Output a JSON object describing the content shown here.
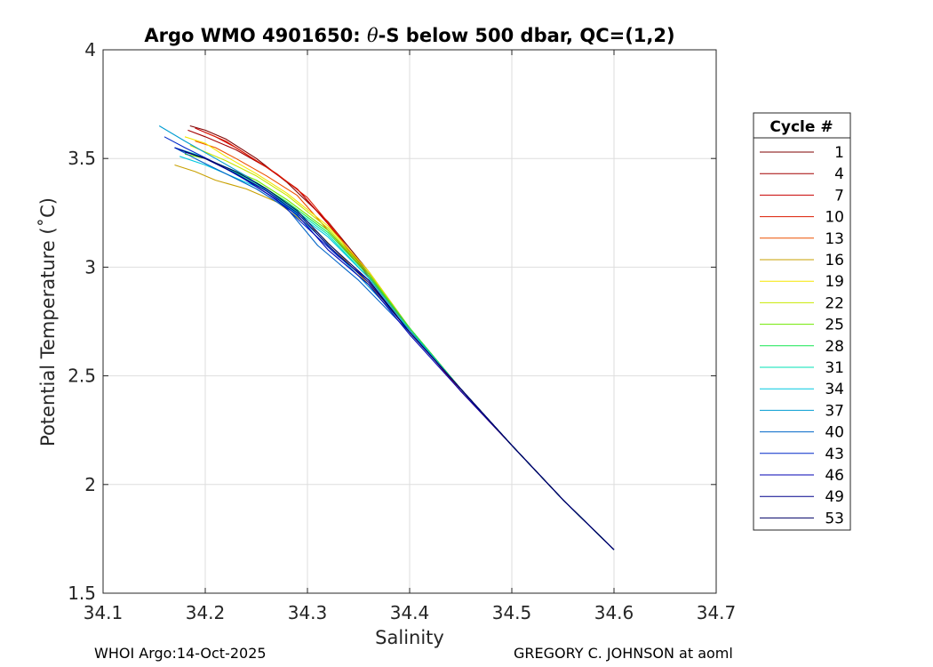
{
  "footer": {
    "left": "WHOI Argo:14-Oct-2025",
    "right": "GREGORY C. JOHNSON at aoml"
  },
  "chart_data": {
    "type": "line",
    "title_prefix": "Argo WMO 4901650: ",
    "title_theta": "θ",
    "title_suffix": "-S below 500 dbar,  QC=(1,2)",
    "xlabel": "Salinity",
    "ylabel": "Potential Temperature (˚C)",
    "xlim": [
      34.1,
      34.7
    ],
    "ylim": [
      1.5,
      4
    ],
    "xticks": [
      34.1,
      34.2,
      34.3,
      34.4,
      34.5,
      34.6,
      34.7
    ],
    "xtick_labels": [
      "34.1",
      "34.2",
      "34.3",
      "34.4",
      "34.5",
      "34.6",
      "34.7"
    ],
    "yticks": [
      1.5,
      2,
      2.5,
      3,
      3.5,
      4
    ],
    "ytick_labels": [
      "1.5",
      "2",
      "2.5",
      "3",
      "3.5",
      "4"
    ],
    "grid": true,
    "legend": {
      "title": "Cycle #",
      "placement": "right-outside",
      "entries": [
        {
          "label": "1",
          "color": "#7f0000"
        },
        {
          "label": "4",
          "color": "#a30000"
        },
        {
          "label": "7",
          "color": "#c80000"
        },
        {
          "label": "10",
          "color": "#dc1a00"
        },
        {
          "label": "13",
          "color": "#ee5000"
        },
        {
          "label": "16",
          "color": "#c8a000"
        },
        {
          "label": "19",
          "color": "#f5e600"
        },
        {
          "label": "22",
          "color": "#c8e800"
        },
        {
          "label": "25",
          "color": "#6ee800"
        },
        {
          "label": "28",
          "color": "#14e650"
        },
        {
          "label": "31",
          "color": "#00e0b4"
        },
        {
          "label": "34",
          "color": "#00c8e0"
        },
        {
          "label": "37",
          "color": "#009cd2"
        },
        {
          "label": "40",
          "color": "#0064c8"
        },
        {
          "label": "43",
          "color": "#0028c8"
        },
        {
          "label": "46",
          "color": "#0000b4"
        },
        {
          "label": "49",
          "color": "#00008c"
        },
        {
          "label": "53",
          "color": "#000064"
        }
      ]
    },
    "profiles": [
      {
        "color": "#7f0000",
        "s": [
          34.185,
          34.2,
          34.22,
          34.25,
          34.28,
          34.32,
          34.36,
          34.4,
          34.45,
          34.5,
          34.55,
          34.6
        ],
        "t": [
          3.65,
          3.63,
          3.59,
          3.5,
          3.39,
          3.21,
          2.98,
          2.72,
          2.44,
          2.18,
          1.93,
          1.7
        ]
      },
      {
        "color": "#a30000",
        "s": [
          34.183,
          34.2,
          34.23,
          34.26,
          34.29,
          34.32,
          34.36,
          34.4,
          34.45,
          34.5,
          34.55,
          34.6
        ],
        "t": [
          3.63,
          3.6,
          3.54,
          3.46,
          3.36,
          3.2,
          2.97,
          2.71,
          2.44,
          2.18,
          1.93,
          1.7
        ]
      },
      {
        "color": "#c80000",
        "s": [
          34.19,
          34.21,
          34.23,
          34.26,
          34.29,
          34.32,
          34.36,
          34.4,
          34.45,
          34.5,
          34.55,
          34.6
        ],
        "t": [
          3.64,
          3.6,
          3.55,
          3.46,
          3.36,
          3.2,
          2.96,
          2.71,
          2.43,
          2.18,
          1.93,
          1.7
        ]
      },
      {
        "color": "#dc1a00",
        "s": [
          34.2,
          34.22,
          34.24,
          34.27,
          34.3,
          34.33,
          34.36,
          34.4,
          34.45,
          34.5,
          34.55,
          34.6
        ],
        "t": [
          3.62,
          3.58,
          3.52,
          3.43,
          3.32,
          3.15,
          2.95,
          2.71,
          2.43,
          2.18,
          1.93,
          1.7
        ]
      },
      {
        "color": "#ee5000",
        "s": [
          34.19,
          34.21,
          34.23,
          34.26,
          34.29,
          34.32,
          34.36,
          34.4,
          34.45,
          34.5,
          34.55,
          34.6
        ],
        "t": [
          3.58,
          3.55,
          3.5,
          3.42,
          3.33,
          3.17,
          2.96,
          2.71,
          2.44,
          2.18,
          1.93,
          1.7
        ]
      },
      {
        "color": "#c8a000",
        "s": [
          34.17,
          34.19,
          34.21,
          34.24,
          34.27,
          34.31,
          34.35,
          34.4,
          34.45,
          34.5,
          34.55,
          34.6
        ],
        "t": [
          3.47,
          3.44,
          3.4,
          3.36,
          3.3,
          3.16,
          2.97,
          2.72,
          2.44,
          2.18,
          1.93,
          1.7
        ]
      },
      {
        "color": "#f5e600",
        "s": [
          34.18,
          34.2,
          34.22,
          34.25,
          34.28,
          34.32,
          34.36,
          34.4,
          34.45,
          34.5,
          34.55,
          34.6
        ],
        "t": [
          3.6,
          3.57,
          3.51,
          3.43,
          3.34,
          3.19,
          2.98,
          2.72,
          2.44,
          2.18,
          1.93,
          1.7
        ]
      },
      {
        "color": "#c8e800",
        "s": [
          34.185,
          34.2,
          34.22,
          34.25,
          34.28,
          34.32,
          34.36,
          34.4,
          34.45,
          34.5,
          34.55,
          34.6
        ],
        "t": [
          3.56,
          3.53,
          3.49,
          3.42,
          3.33,
          3.18,
          2.97,
          2.72,
          2.44,
          2.18,
          1.93,
          1.7
        ]
      },
      {
        "color": "#6ee800",
        "s": [
          34.18,
          34.2,
          34.22,
          34.25,
          34.28,
          34.32,
          34.36,
          34.4,
          34.45,
          34.5,
          34.55,
          34.6
        ],
        "t": [
          3.52,
          3.5,
          3.46,
          3.4,
          3.31,
          3.17,
          2.97,
          2.72,
          2.44,
          2.18,
          1.93,
          1.7
        ]
      },
      {
        "color": "#14e650",
        "s": [
          34.175,
          34.2,
          34.22,
          34.25,
          34.28,
          34.32,
          34.36,
          34.4,
          34.45,
          34.5,
          34.55,
          34.6
        ],
        "t": [
          3.54,
          3.5,
          3.46,
          3.39,
          3.3,
          3.16,
          2.96,
          2.72,
          2.44,
          2.18,
          1.93,
          1.7
        ]
      },
      {
        "color": "#00e0b4",
        "s": [
          34.17,
          34.19,
          34.22,
          34.25,
          34.28,
          34.32,
          34.36,
          34.4,
          34.45,
          34.5,
          34.55,
          34.6
        ],
        "t": [
          3.55,
          3.52,
          3.46,
          3.38,
          3.29,
          3.15,
          2.95,
          2.71,
          2.44,
          2.18,
          1.93,
          1.7
        ]
      },
      {
        "color": "#00c8e0",
        "s": [
          34.175,
          34.2,
          34.22,
          34.25,
          34.28,
          34.32,
          34.36,
          34.4,
          34.45,
          34.5,
          34.55,
          34.6
        ],
        "t": [
          3.51,
          3.47,
          3.43,
          3.37,
          3.28,
          3.14,
          2.95,
          2.71,
          2.44,
          2.18,
          1.93,
          1.7
        ]
      },
      {
        "color": "#009cd2",
        "s": [
          34.155,
          34.18,
          34.21,
          34.24,
          34.27,
          34.31,
          34.35,
          34.4,
          34.45,
          34.5,
          34.55,
          34.6
        ],
        "t": [
          3.65,
          3.58,
          3.5,
          3.42,
          3.32,
          3.15,
          2.96,
          2.71,
          2.44,
          2.18,
          1.93,
          1.7
        ]
      },
      {
        "color": "#0064c8",
        "s": [
          34.17,
          34.19,
          34.22,
          34.25,
          34.28,
          34.31,
          34.35,
          34.4,
          34.45,
          34.5,
          34.55,
          34.6
        ],
        "t": [
          3.55,
          3.5,
          3.43,
          3.36,
          3.27,
          3.1,
          2.94,
          2.7,
          2.44,
          2.18,
          1.93,
          1.7
        ]
      },
      {
        "color": "#0028c8",
        "s": [
          34.16,
          34.18,
          34.21,
          34.24,
          34.27,
          34.3,
          34.33,
          34.36,
          34.4,
          34.45,
          34.5,
          34.55,
          34.6
        ],
        "t": [
          3.6,
          3.55,
          3.48,
          3.4,
          3.31,
          3.18,
          3.05,
          2.94,
          2.7,
          2.44,
          2.18,
          1.93,
          1.7
        ]
      },
      {
        "color": "#0000b4",
        "s": [
          34.17,
          34.2,
          34.23,
          34.26,
          34.29,
          34.32,
          34.36,
          34.4,
          34.45,
          34.5,
          34.55,
          34.6
        ],
        "t": [
          3.55,
          3.5,
          3.43,
          3.34,
          3.24,
          3.08,
          2.92,
          2.69,
          2.43,
          2.18,
          1.93,
          1.7
        ]
      },
      {
        "color": "#00008c",
        "s": [
          34.175,
          34.2,
          34.23,
          34.26,
          34.29,
          34.32,
          34.36,
          34.4,
          34.45,
          34.5,
          34.55,
          34.6
        ],
        "t": [
          3.54,
          3.5,
          3.43,
          3.35,
          3.25,
          3.1,
          2.93,
          2.7,
          2.44,
          2.18,
          1.93,
          1.7
        ]
      },
      {
        "color": "#000064",
        "s": [
          34.18,
          34.2,
          34.23,
          34.26,
          34.29,
          34.32,
          34.36,
          34.4,
          34.45,
          34.5,
          34.55,
          34.6
        ],
        "t": [
          3.53,
          3.5,
          3.44,
          3.36,
          3.26,
          3.11,
          2.94,
          2.7,
          2.44,
          2.18,
          1.93,
          1.7
        ]
      }
    ]
  }
}
